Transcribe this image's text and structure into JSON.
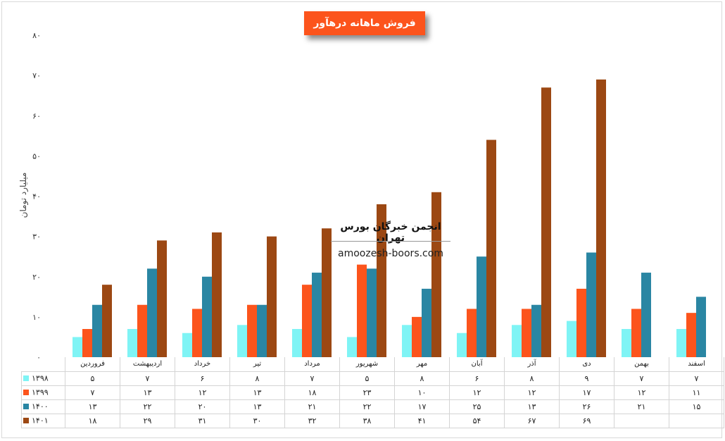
{
  "chart_data": {
    "type": "bar",
    "title": "فروش ماهانه درهآور",
    "ylabel": "میلیارد تومان",
    "xlabel": "",
    "ylim": [
      0,
      80
    ],
    "yticks": [
      0,
      10,
      20,
      30,
      40,
      50,
      60,
      70,
      80
    ],
    "ytick_labels": [
      "۰",
      "۱۰",
      "۲۰",
      "۳۰",
      "۴۰",
      "۵۰",
      "۶۰",
      "۷۰",
      "۸۰"
    ],
    "grid": false,
    "legend": "table-left",
    "categories": [
      "فروردین",
      "اردیبهشت",
      "خرداد",
      "تیر",
      "مرداد",
      "شهریور",
      "مهر",
      "آبان",
      "آذر",
      "دی",
      "بهمن",
      "اسفند"
    ],
    "series": [
      {
        "name": "۱۳۹۸",
        "color": "#7ff4f5",
        "values": [
          5,
          7,
          6,
          8,
          7,
          5,
          8,
          6,
          8,
          9,
          7,
          7
        ],
        "labels": [
          "۵",
          "۷",
          "۶",
          "۸",
          "۷",
          "۵",
          "۸",
          "۶",
          "۸",
          "۹",
          "۷",
          "۷"
        ]
      },
      {
        "name": "۱۳۹۹",
        "color": "#fc541c",
        "values": [
          7,
          13,
          12,
          13,
          18,
          23,
          10,
          12,
          12,
          17,
          12,
          11
        ],
        "labels": [
          "۷",
          "۱۳",
          "۱۲",
          "۱۳",
          "۱۸",
          "۲۳",
          "۱۰",
          "۱۲",
          "۱۲",
          "۱۷",
          "۱۲",
          "۱۱"
        ]
      },
      {
        "name": "۱۴۰۰",
        "color": "#2a86a3",
        "values": [
          13,
          22,
          20,
          13,
          21,
          22,
          17,
          25,
          13,
          26,
          21,
          15
        ],
        "labels": [
          "۱۳",
          "۲۲",
          "۲۰",
          "۱۳",
          "۲۱",
          "۲۲",
          "۱۷",
          "۲۵",
          "۱۳",
          "۲۶",
          "۲۱",
          "۱۵"
        ]
      },
      {
        "name": "۱۴۰۱",
        "color": "#9c4813",
        "values": [
          18,
          29,
          31,
          30,
          32,
          38,
          41,
          54,
          67,
          69,
          null,
          null
        ],
        "labels": [
          "۱۸",
          "۲۹",
          "۳۱",
          "۳۰",
          "۳۲",
          "۳۸",
          "۴۱",
          "۵۴",
          "۶۷",
          "۶۹",
          "",
          ""
        ]
      }
    ]
  },
  "watermark": {
    "title": "انجمن خبرگان بورس تهران",
    "url": "amoozesh-boors.com"
  }
}
